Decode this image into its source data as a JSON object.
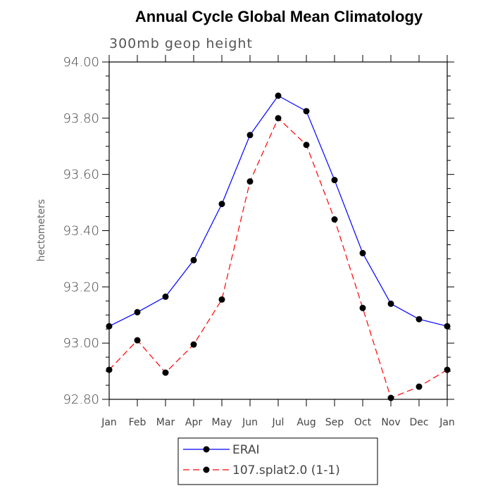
{
  "chart_data": {
    "type": "line",
    "title": "Annual Cycle Global Mean Climatology",
    "subtitle": "300mb geop height",
    "xlabel": "",
    "ylabel": "hectometers",
    "categories": [
      "Jan",
      "Feb",
      "Mar",
      "Apr",
      "May",
      "Jun",
      "Jul",
      "Aug",
      "Sep",
      "Oct",
      "Nov",
      "Dec",
      "Jan"
    ],
    "ylim": [
      92.8,
      94.0
    ],
    "yticks": [
      "92.80",
      "93.00",
      "93.20",
      "93.40",
      "93.60",
      "93.80",
      "94.00"
    ],
    "grid": false,
    "legend_position": "bottom",
    "series": [
      {
        "name": "ERAI",
        "color": "#0000ff",
        "line_style": "solid",
        "values": [
          93.06,
          93.11,
          93.165,
          93.295,
          93.495,
          93.74,
          93.88,
          93.825,
          93.58,
          93.32,
          93.14,
          93.085,
          93.06
        ]
      },
      {
        "name": "107.splat2.0 (1-1)",
        "color": "#ff0000",
        "line_style": "dashed",
        "values": [
          92.905,
          93.01,
          92.895,
          92.995,
          93.155,
          93.575,
          93.8,
          93.705,
          93.44,
          93.125,
          92.805,
          92.845,
          92.905
        ]
      }
    ]
  }
}
